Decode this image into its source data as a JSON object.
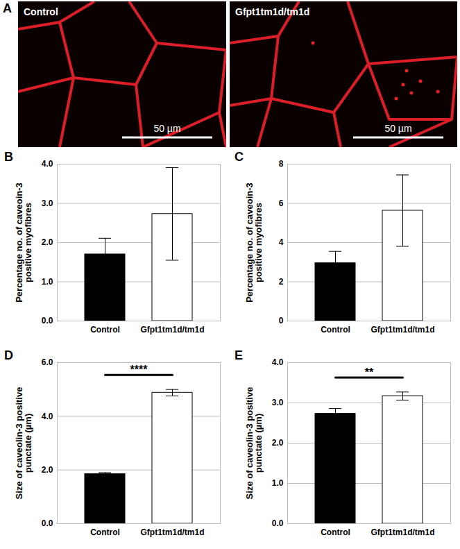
{
  "image_panel": {
    "title": "A",
    "images": [
      {
        "label": "Control"
      },
      {
        "label": "Gfpt1tm1d/tm1d"
      }
    ],
    "scale_bar": "50 µm"
  },
  "chart_data": [
    {
      "type": "bar",
      "title": "B",
      "ylabel": "Percentage no. of caveoin-3 positive myofibres",
      "categories": [
        "Control",
        "Gfpt1tm1d/tm1d"
      ],
      "values": [
        1.7,
        2.73
      ],
      "errors": [
        0.41,
        1.18
      ],
      "colors": [
        "#000000",
        "#ffffff"
      ],
      "ylim": [
        0,
        4
      ],
      "yticks": [
        0,
        1,
        2,
        3,
        4
      ],
      "grid": true
    },
    {
      "type": "bar",
      "title": "C",
      "ylabel": "Percentage no. of caveoin-3 positive myofibres",
      "categories": [
        "Control",
        "Gfpt1tm1d/tm1d"
      ],
      "values": [
        2.95,
        5.63
      ],
      "errors": [
        0.6,
        1.82
      ],
      "colors": [
        "#000000",
        "#ffffff"
      ],
      "ylim": [
        0,
        8
      ],
      "yticks": [
        0,
        2,
        4,
        6,
        8
      ],
      "grid": true
    },
    {
      "type": "bar",
      "title": "D",
      "ylabel": "Size of caveolin-3 positive punctate (µm)",
      "categories": [
        "Control",
        "Gfpt1tm1d/tm1d"
      ],
      "values": [
        1.85,
        4.88
      ],
      "errors": [
        0.05,
        0.12
      ],
      "colors": [
        "#000000",
        "#ffffff"
      ],
      "ylim": [
        0,
        6
      ],
      "yticks": [
        0,
        2,
        4,
        6
      ],
      "grid": true,
      "annotations": [
        {
          "text": "****",
          "from": "Control",
          "to": "Gfpt1tm1d/tm1d"
        }
      ]
    },
    {
      "type": "bar",
      "title": "E",
      "ylabel": "Size of caveolin-3 positive punctate (µm)",
      "categories": [
        "Control",
        "Gfpt1tm1d/tm1d"
      ],
      "values": [
        2.73,
        3.17
      ],
      "errors": [
        0.13,
        0.1
      ],
      "colors": [
        "#000000",
        "#ffffff"
      ],
      "ylim": [
        0,
        4
      ],
      "yticks": [
        0,
        1,
        2,
        3,
        4
      ],
      "grid": true,
      "annotations": [
        {
          "text": "**",
          "from": "Control",
          "to": "Gfpt1tm1d/tm1d"
        }
      ]
    }
  ]
}
